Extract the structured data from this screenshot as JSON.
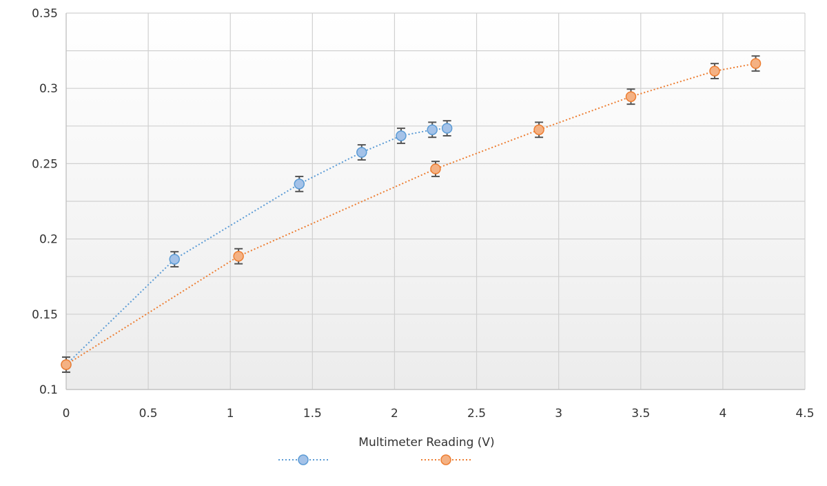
{
  "chart_data": {
    "type": "scatter",
    "title": "",
    "xlabel": "Multimeter Reading (V)",
    "ylabel": "",
    "xlim": [
      0,
      4.5
    ],
    "ylim": [
      0.1,
      0.35
    ],
    "x_ticks": [
      "0",
      "0.5",
      "1",
      "1.5",
      "2",
      "2.5",
      "3",
      "3.5",
      "4",
      "4.5"
    ],
    "y_ticks": [
      "0.1",
      "0.15",
      "0.2",
      "0.25",
      "0.3",
      "0.35"
    ],
    "grid": true,
    "legend": "bottom",
    "series": [
      {
        "color": "#5B9BD5",
        "fill": "#A4C2E8",
        "line_style": "dotted",
        "error": 0.005,
        "x": [
          0,
          0.66,
          1.42,
          1.8,
          2.04,
          2.23,
          2.32
        ],
        "y": [
          0.1165,
          0.1865,
          0.2365,
          0.2575,
          0.2685,
          0.2725,
          0.2735
        ]
      },
      {
        "color": "#ED7D31",
        "fill": "#F4B183",
        "line_style": "dotted",
        "error": 0.005,
        "x": [
          0,
          1.05,
          2.25,
          2.88,
          3.44,
          3.95,
          4.2
        ],
        "y": [
          0.1165,
          0.1885,
          0.2465,
          0.2725,
          0.2945,
          0.3115,
          0.3165
        ]
      }
    ]
  }
}
